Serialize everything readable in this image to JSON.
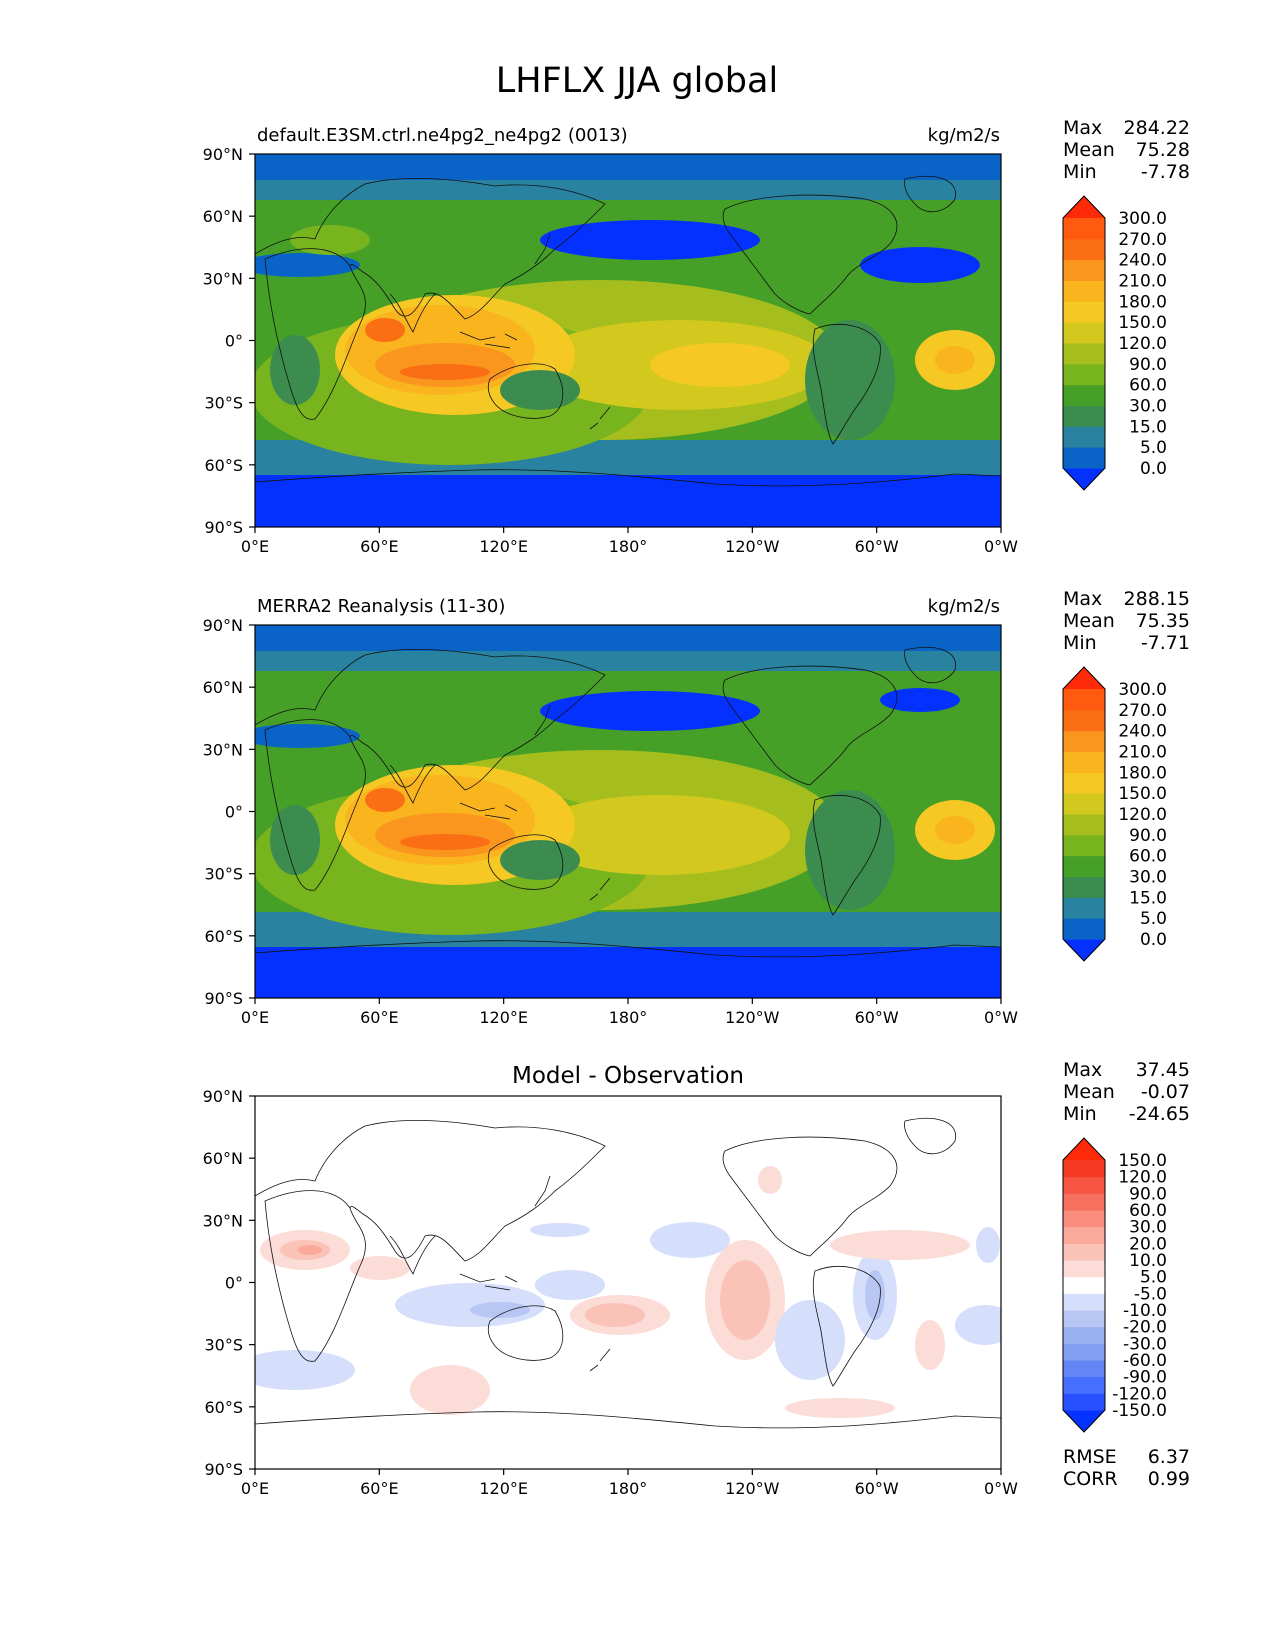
{
  "title": "LHFLX JJA global",
  "x_ticks": [
    "0°E",
    "60°E",
    "120°E",
    "180°",
    "120°W",
    "60°W",
    "0°W"
  ],
  "y_ticks": [
    "90°N",
    "60°N",
    "30°N",
    "0°",
    "30°S",
    "60°S",
    "90°S"
  ],
  "chart_data": [
    {
      "type": "heatmap",
      "title": "default.E3SM.ctrl.ne4pg2_ne4pg2 (0013)",
      "units": "kg/m2/s",
      "xlabel": "",
      "ylabel": "",
      "xlim": [
        "0°E",
        "0°W"
      ],
      "ylim": [
        "90°S",
        "90°N"
      ],
      "stats": {
        "max": "284.22",
        "mean": "75.28",
        "min": "-7.78"
      },
      "colorbar_levels": [
        "0.0",
        "5.0",
        "15.0",
        "30.0",
        "60.0",
        "90.0",
        "120.0",
        "150.0",
        "180.0",
        "210.0",
        "240.0",
        "270.0",
        "300.0"
      ],
      "colorbar_colors": [
        "#0531ff",
        "#0a64c8",
        "#2882a0",
        "#3c8c50",
        "#46a028",
        "#78b41e",
        "#a5be1e",
        "#d2c81e",
        "#f5c823",
        "#fab41e",
        "#fa961e",
        "#fa6e14",
        "#ff5a0f",
        "#ff2a0a"
      ]
    },
    {
      "type": "heatmap",
      "title": "MERRA2 Reanalysis (11-30)",
      "units": "kg/m2/s",
      "xlabel": "",
      "ylabel": "",
      "xlim": [
        "0°E",
        "0°W"
      ],
      "ylim": [
        "90°S",
        "90°N"
      ],
      "stats": {
        "max": "288.15",
        "mean": "75.35",
        "min": "-7.71"
      },
      "colorbar_levels": [
        "0.0",
        "5.0",
        "15.0",
        "30.0",
        "60.0",
        "90.0",
        "120.0",
        "150.0",
        "180.0",
        "210.0",
        "240.0",
        "270.0",
        "300.0"
      ],
      "colorbar_colors": [
        "#0531ff",
        "#0a64c8",
        "#2882a0",
        "#3c8c50",
        "#46a028",
        "#78b41e",
        "#a5be1e",
        "#d2c81e",
        "#f5c823",
        "#fab41e",
        "#fa961e",
        "#fa6e14",
        "#ff5a0f",
        "#ff2a0a"
      ]
    },
    {
      "type": "heatmap",
      "title": "Model - Observation",
      "units": "",
      "xlabel": "",
      "ylabel": "",
      "xlim": [
        "0°E",
        "0°W"
      ],
      "ylim": [
        "90°S",
        "90°N"
      ],
      "stats": {
        "max": "37.45",
        "mean": "-0.07",
        "min": "-24.65"
      },
      "metrics": {
        "rmse": "6.37",
        "corr": "0.99"
      },
      "colorbar_levels": [
        "-150.0",
        "-120.0",
        "-90.0",
        "-60.0",
        "-30.0",
        "-20.0",
        "-10.0",
        "-5.0",
        "5.0",
        "10.0",
        "20.0",
        "30.0",
        "60.0",
        "90.0",
        "120.0",
        "150.0"
      ],
      "colorbar_colors": [
        "#0532ff",
        "#2850ff",
        "#466eff",
        "#6485f5",
        "#829ef0",
        "#9bb0ee",
        "#b7c6f3",
        "#d5defa",
        "#ffffff",
        "#fbdcd7",
        "#fbc3b8",
        "#fba99b",
        "#fa8d7d",
        "#f7705f",
        "#f55541",
        "#f53a23",
        "#ff2a0a"
      ]
    }
  ],
  "labels": {
    "max": "Max",
    "mean": "Mean",
    "min": "Min",
    "rmse": "RMSE",
    "corr": "CORR"
  }
}
